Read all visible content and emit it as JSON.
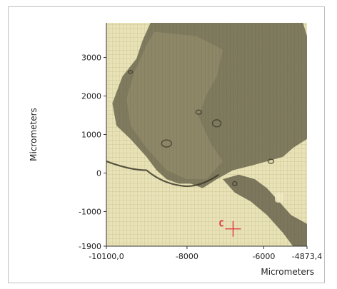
{
  "chart_data": {
    "type": "image-plot",
    "xlabel": "Micrometers",
    "ylabel": "Micrometers",
    "xlim": [
      -10100.0,
      -4873.4
    ],
    "ylim": [
      -1900,
      3900
    ],
    "x_ticks": [
      {
        "value": -10100.0,
        "label": "-10100,0"
      },
      {
        "value": -8000,
        "label": "-8000"
      },
      {
        "value": -6000,
        "label": "-6000"
      },
      {
        "value": -4873.4,
        "label": "-4873,4"
      }
    ],
    "y_ticks": [
      {
        "value": 3000,
        "label": "3000"
      },
      {
        "value": 2000,
        "label": "2000"
      },
      {
        "value": 1000,
        "label": "1000"
      },
      {
        "value": 0,
        "label": "0"
      },
      {
        "value": -1000,
        "label": "-1000"
      },
      {
        "value": -1900,
        "label": "-1900"
      }
    ],
    "marker": {
      "label": "C",
      "x": -6800,
      "y": -1450,
      "color": "#e0303a"
    },
    "colors": {
      "background": "#e8e2b6",
      "stripe": "#d9d2a0",
      "tissue_light": "#9a9470",
      "tissue_dark": "#4e4b37",
      "axis": "#333333"
    }
  }
}
